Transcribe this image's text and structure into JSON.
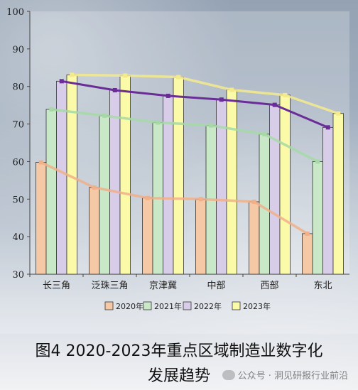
{
  "chart_data": {
    "type": "bar",
    "categories": [
      "长三角",
      "泛珠三角",
      "京津冀",
      "中部",
      "西部",
      "东北"
    ],
    "series": [
      {
        "name": "2020年",
        "values": [
          59.8,
          53.1,
          50.3,
          50.0,
          49.3,
          40.8
        ],
        "color": "#f6c9a6",
        "line": "#f0b08a"
      },
      {
        "name": "2021年",
        "values": [
          73.9,
          72.2,
          70.4,
          69.6,
          67.3,
          60.0
        ],
        "color": "#c8e8c8",
        "line": "#a6d9a6"
      },
      {
        "name": "2022年",
        "values": [
          81.4,
          79.0,
          77.5,
          76.5,
          75.1,
          69.1
        ],
        "color": "#d8cde8",
        "line": "#6a2c96"
      },
      {
        "name": "2023年",
        "values": [
          83.1,
          82.9,
          82.5,
          79.1,
          77.7,
          72.8
        ],
        "color": "#fbfaa8",
        "line": "#f4ea8c"
      }
    ],
    "ylim": [
      30,
      100
    ],
    "yticks": [
      30,
      40,
      50,
      60,
      70,
      80,
      90,
      100
    ],
    "grid": false,
    "legend_position": "bottom"
  },
  "caption": {
    "line1": "图4 2020-2023年重点区域制造业数字化",
    "line2": "发展趋势"
  },
  "watermark": "公众号 · 洞见研报行业前沿"
}
